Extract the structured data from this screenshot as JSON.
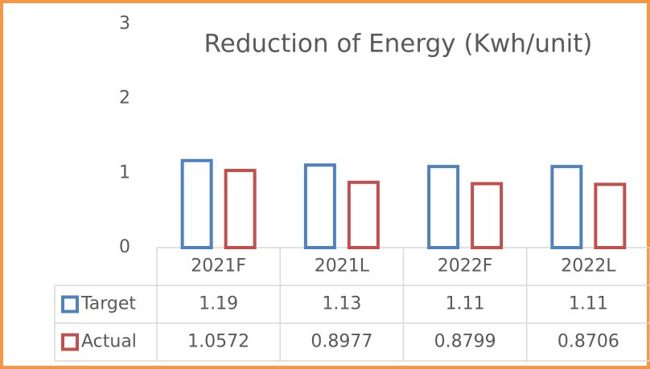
{
  "chart_data": {
    "type": "bar",
    "title": "Reduction of Energy (Kwh/unit)",
    "categories": [
      "2021F",
      "2021L",
      "2022F",
      "2022L"
    ],
    "series": [
      {
        "name": "Target",
        "color": "#4f81bd",
        "values": [
          1.19,
          1.13,
          1.11,
          1.11
        ]
      },
      {
        "name": "Actual",
        "color": "#c0504d",
        "values": [
          1.0572,
          0.8977,
          0.8799,
          0.8706
        ]
      }
    ],
    "ylim": [
      0,
      3
    ],
    "yticks": [
      0,
      1,
      2,
      3
    ],
    "grid": false
  }
}
